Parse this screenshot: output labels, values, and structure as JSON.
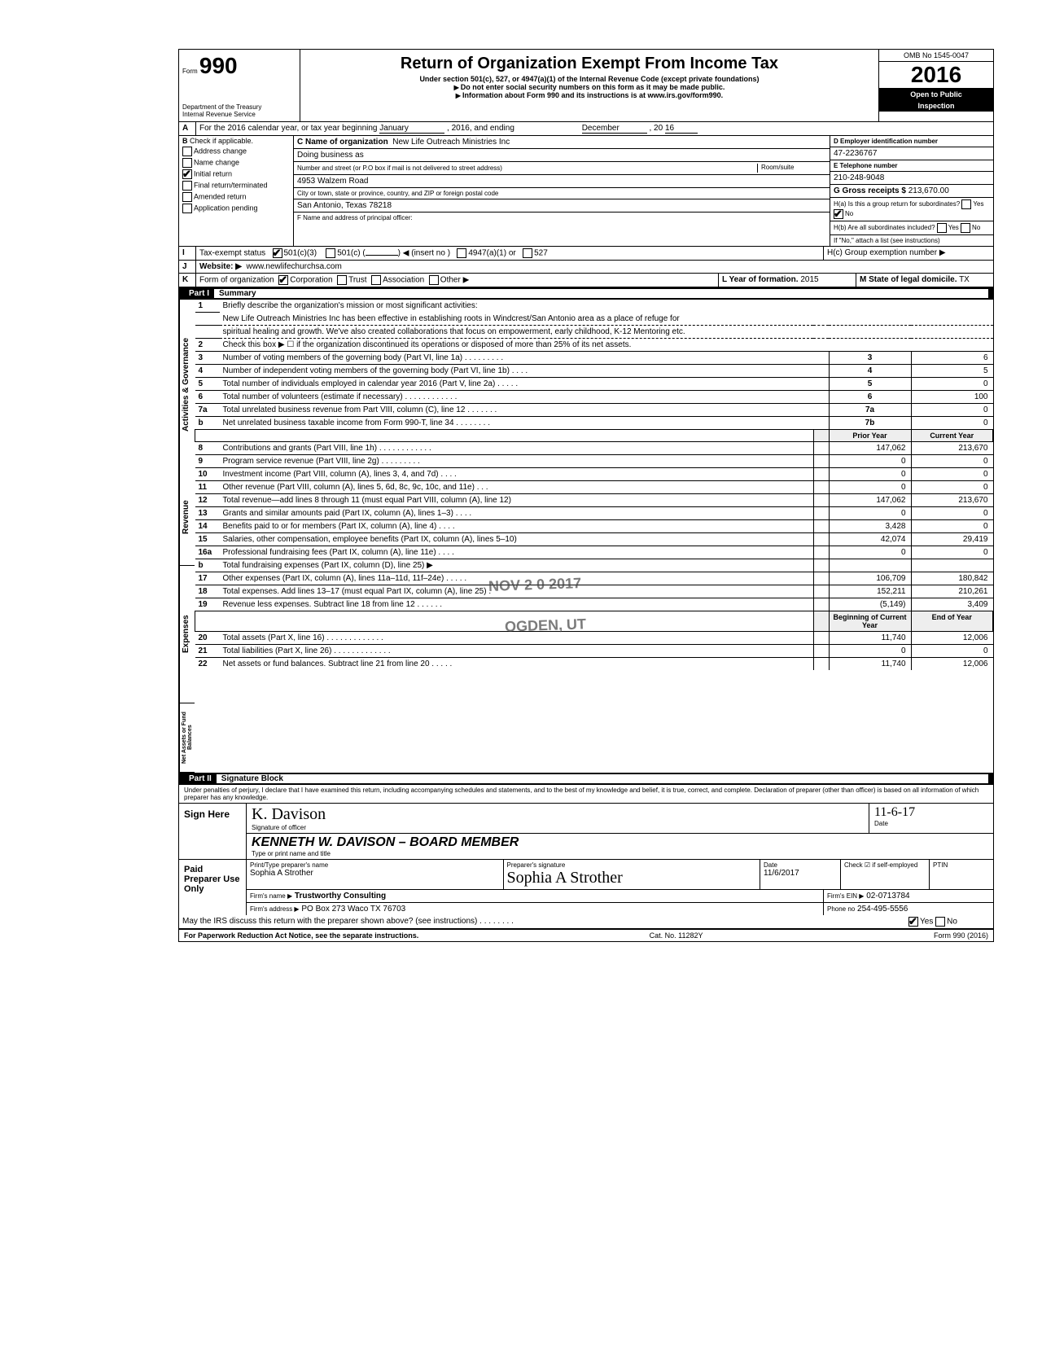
{
  "header": {
    "form_prefix": "Form",
    "form_number": "990",
    "dept1": "Department of the Treasury",
    "dept2": "Internal Revenue Service",
    "title": "Return of Organization Exempt From Income Tax",
    "subtitle": "Under section 501(c), 527, or 4947(a)(1) of the Internal Revenue Code (except private foundations)",
    "note1": "Do not enter social security numbers on this form as it may be made public.",
    "note2": "Information about Form 990 and its instructions is at www.irs.gov/form990.",
    "omb": "OMB No 1545-0047",
    "year_prefix": "20",
    "year_big": "16",
    "open": "Open to Public",
    "inspection": "Inspection"
  },
  "lineA": {
    "label": "A",
    "text": "For the 2016 calendar year, or tax year beginning",
    "begin_month": "January",
    "mid": ", 2016, and ending",
    "end_month": "December",
    "end_year_pref": ", 20",
    "end_year": "16"
  },
  "sectionB": {
    "B_label": "B",
    "check_if": "Check if applicable.",
    "opts": [
      "Address change",
      "Name change",
      "Initial return",
      "Final return/terminated",
      "Amended return",
      "Application pending"
    ],
    "checked_index": 2,
    "C_label": "C Name of organization",
    "org_name": "New Life Outreach Ministries Inc",
    "dba": "Doing business as",
    "street_label": "Number and street (or P.O  box if mail is not delivered to street address)",
    "room_label": "Room/suite",
    "street": "4953 Walzem Road",
    "city_label": "City or town, state or province, country, and ZIP or foreign postal code",
    "city": "San Antonio, Texas 78218",
    "F_label": "F Name and address of principal officer:",
    "D_label": "D Employer identification number",
    "ein": "47-2236767",
    "E_label": "E Telephone number",
    "phone": "210-248-9048",
    "G_label": "G Gross receipts $",
    "gross": "213,670.00",
    "Ha": "H(a) Is this a group return for subordinates?",
    "Hb": "H(b) Are all subordinates included?",
    "H_note": "If \"No,\" attach a list  (see instructions)",
    "Hc": "H(c) Group exemption number ▶",
    "yes": "Yes",
    "no": "No"
  },
  "lineI": {
    "label": "I",
    "text": "Tax-exempt status",
    "opt1": "501(c)(3)",
    "opt2": "501(c) (",
    "opt2b": ") ◀ (insert no )",
    "opt3": "4947(a)(1) or",
    "opt4": "527"
  },
  "lineJ": {
    "label": "J",
    "text": "Website: ▶",
    "value": "www.newlifechurchsa.com"
  },
  "lineK": {
    "label": "K",
    "text": "Form of organization",
    "opts": [
      "Corporation",
      "Trust",
      "Association",
      "Other ▶"
    ],
    "L_label": "L Year of formation.",
    "L_val": "2015",
    "M_label": "M State of legal domicile.",
    "M_val": "TX"
  },
  "partI": {
    "label": "Part I",
    "title": "Summary"
  },
  "summary": {
    "side1": "Activities & Governance",
    "side2": "Revenue",
    "side3": "Expenses",
    "side4": "Net Assets or Fund Balances",
    "l1_label": "Briefly describe the organization's mission or most significant activities:",
    "l1_text1": "New Life Outreach Ministries Inc has been effective in establishing roots in Windcrest/San Antonio area as a place of refuge for",
    "l1_text2": "spiritual healing and growth.  We've also created collaborations that focus on empowerment, early childhood, K-12 Mentoring etc.",
    "l2": "Check this box ▶ ☐ if the organization discontinued its operations or disposed of more than 25% of its net assets.",
    "rows_top": [
      {
        "n": "3",
        "t": "Number of voting members of the governing body (Part VI, line 1a) .  .  .  .  .  .  .  .  .",
        "box": "3",
        "v": "6"
      },
      {
        "n": "4",
        "t": "Number of independent voting members of the governing body (Part VI, line 1b)  .  .  .  .",
        "box": "4",
        "v": "5"
      },
      {
        "n": "5",
        "t": "Total number of individuals employed in calendar year 2016 (Part V, line 2a)   .  .  .  .  .",
        "box": "5",
        "v": "0"
      },
      {
        "n": "6",
        "t": "Total number of volunteers (estimate if necessary)    .   .   .   .   .   .   .   .   .   .   .   .",
        "box": "6",
        "v": "100"
      },
      {
        "n": "7a",
        "t": "Total unrelated business revenue from Part VIII, column (C), line 12   .   .   .   .   .   .   .",
        "box": "7a",
        "v": "0"
      },
      {
        "n": "b",
        "t": "Net unrelated business taxable income from Form 990-T, line 34   .   .   .   .   .   .   .   .",
        "box": "7b",
        "v": "0"
      }
    ],
    "col_prior": "Prior Year",
    "col_current": "Current Year",
    "rows_rev": [
      {
        "n": "8",
        "t": "Contributions and grants (Part VIII, line 1h) .  .  .  .  .  .  .  .  .  .  .  .",
        "p": "147,062",
        "c": "213,670"
      },
      {
        "n": "9",
        "t": "Program service revenue (Part VIII, line 2g)    .   .   .   .   .   .   .   .   .",
        "p": "0",
        "c": "0"
      },
      {
        "n": "10",
        "t": "Investment income (Part VIII, column (A), lines 3, 4, and 7d)   .   .   .   .",
        "p": "0",
        "c": "0"
      },
      {
        "n": "11",
        "t": "Other revenue (Part VIII, column (A), lines 5, 6d, 8c, 9c, 10c, and 11e) .  .  .",
        "p": "0",
        "c": "0"
      },
      {
        "n": "12",
        "t": "Total revenue—add lines 8 through 11 (must equal Part VIII, column (A), line 12)",
        "p": "147,062",
        "c": "213,670"
      }
    ],
    "rows_exp": [
      {
        "n": "13",
        "t": "Grants and similar amounts paid (Part IX, column (A), lines 1–3) .  .  .  .",
        "p": "0",
        "c": "0"
      },
      {
        "n": "14",
        "t": "Benefits paid to or for members (Part IX, column (A), line 4)   .   .   .   .",
        "p": "3,428",
        "c": "0"
      },
      {
        "n": "15",
        "t": "Salaries, other compensation, employee benefits (Part IX, column (A), lines 5–10)",
        "p": "42,074",
        "c": "29,419"
      },
      {
        "n": "16a",
        "t": "Professional fundraising fees (Part IX, column (A), line 11e)   .   .   .   .",
        "p": "0",
        "c": "0"
      },
      {
        "n": "b",
        "t": "Total fundraising expenses (Part IX, column (D), line 25) ▶",
        "p": "",
        "c": ""
      },
      {
        "n": "17",
        "t": "Other expenses (Part IX, column (A), lines 11a–11d, 11f–24e) .  .  .  .  .",
        "p": "106,709",
        "c": "180,842"
      },
      {
        "n": "18",
        "t": "Total expenses. Add lines 13–17 (must equal Part IX, column (A), line 25)  .",
        "p": "152,211",
        "c": "210,261"
      },
      {
        "n": "19",
        "t": "Revenue less expenses. Subtract line 18 from line 12   .   .   .   .   .   .",
        "p": "(5,149)",
        "c": "3,409"
      }
    ],
    "col_begin": "Beginning of Current Year",
    "col_end": "End of Year",
    "rows_net": [
      {
        "n": "20",
        "t": "Total assets (Part X, line 16)   .   .   .   .   .   .   .   .   .   .   .   .   .",
        "p": "11,740",
        "c": "12,006"
      },
      {
        "n": "21",
        "t": "Total liabilities (Part X, line 26) .   .   .   .   .   .   .   .   .   .   .   .   .",
        "p": "0",
        "c": "0"
      },
      {
        "n": "22",
        "t": "Net assets or fund balances. Subtract line 21 from line 20   .   .   .   .   .",
        "p": "11,740",
        "c": "12,006"
      }
    ],
    "stamp1": "NOV 2 0 2017",
    "stamp2": "OGDEN, UT"
  },
  "partII": {
    "label": "Part II",
    "title": "Signature Block"
  },
  "sig": {
    "jurat": "Under penalties of perjury, I declare that I have examined this return, including accompanying schedules and statements, and to the best of my knowledge and belief, it is true, correct, and complete. Declaration of preparer (other than officer) is based on all information of which preparer has any knowledge.",
    "sign_here": "Sign Here",
    "sig_officer_label": "Signature of officer",
    "date_label": "Date",
    "officer_sig": "K. Davison",
    "officer_date": "11-6-17",
    "type_label": "Type or print name and title",
    "officer_name": "KENNETH W. DAVISON – BOARD MEMBER",
    "paid": "Paid Preparer Use Only",
    "prep_name_label": "Print/Type preparer's name",
    "prep_name": "Sophia A Strother",
    "prep_sig_label": "Preparer's signature",
    "prep_sig": "Sophia A Strother",
    "prep_date": "11/6/2017",
    "check_self": "Check ☑ if self-employed",
    "ptin_label": "PTIN",
    "firm_name_label": "Firm's name   ▶",
    "firm_name": "Trustworthy Consulting",
    "firm_ein_label": "Firm's EIN ▶",
    "firm_ein": "02-0713784",
    "firm_addr_label": "Firm's address ▶",
    "firm_addr": "PO Box 273 Waco TX 76703",
    "firm_phone_label": "Phone no",
    "firm_phone": "254-495-5556",
    "discuss": "May the IRS discuss this return with the preparer shown above? (see instructions)   .   .   .   .   .   .   .   .",
    "discuss_yes": "Yes",
    "discuss_no": "No"
  },
  "footer": {
    "left": "For Paperwork Reduction Act Notice, see the separate instructions.",
    "mid": "Cat. No. 11282Y",
    "right": "Form 990 (2016)"
  }
}
